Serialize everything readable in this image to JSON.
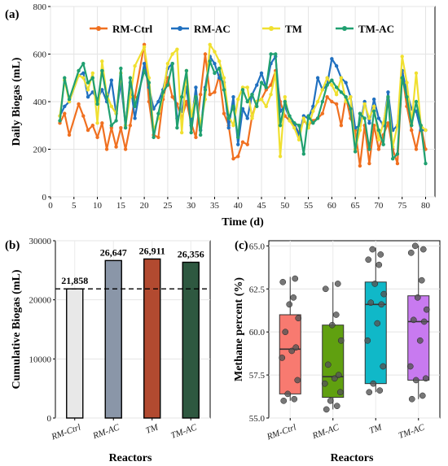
{
  "panels": {
    "a": {
      "label": "(a)"
    },
    "b": {
      "label": "(b)"
    },
    "c": {
      "label": "(c)"
    }
  },
  "colors": {
    "RM-Ctrl": "#f07020",
    "RM-AC": "#2070c0",
    "TM": "#f0e030",
    "TM-AC": "#20a070"
  },
  "chart_data": [
    {
      "id": "a",
      "type": "line",
      "xlabel": "Time (d)",
      "ylabel": "Daily Biogas (mL)",
      "xlim": [
        0,
        82
      ],
      "ylim": [
        0,
        800
      ],
      "xticks": [
        0,
        5,
        10,
        15,
        20,
        25,
        30,
        35,
        40,
        45,
        50,
        55,
        60,
        65,
        70,
        75,
        80
      ],
      "yticks": [
        0,
        200,
        400,
        600,
        800
      ],
      "legend_position": "top",
      "x": [
        2,
        3,
        4,
        6,
        7,
        8,
        9,
        10,
        11,
        12,
        13,
        14,
        15,
        16,
        17,
        18,
        20,
        21,
        22,
        23,
        24,
        25,
        26,
        27,
        28,
        29,
        30,
        31,
        32,
        33,
        34,
        35,
        36,
        37,
        38,
        39,
        40,
        41,
        42,
        43,
        44,
        45,
        46,
        47,
        48,
        49,
        50,
        51,
        52,
        53,
        54,
        55,
        56,
        57,
        58,
        59,
        60,
        61,
        62,
        63,
        64,
        65,
        66,
        67,
        68,
        69,
        70,
        71,
        72,
        73,
        74,
        75,
        76,
        77,
        78,
        79,
        80
      ],
      "series": [
        {
          "name": "RM-Ctrl",
          "values": [
            310,
            350,
            260,
            390,
            340,
            280,
            300,
            250,
            310,
            200,
            290,
            210,
            290,
            200,
            300,
            420,
            640,
            400,
            260,
            250,
            410,
            500,
            420,
            390,
            330,
            400,
            310,
            250,
            430,
            600,
            430,
            440,
            510,
            350,
            300,
            160,
            170,
            230,
            220,
            340,
            400,
            410,
            450,
            470,
            530,
            400,
            340,
            320,
            300,
            270,
            320,
            300,
            320,
            330,
            350,
            420,
            400,
            390,
            300,
            420,
            330,
            280,
            130,
            300,
            140,
            300,
            200,
            260,
            310,
            200,
            140,
            520,
            380,
            280,
            200,
            300,
            200
          ]
        },
        {
          "name": "RM-AC",
          "values": [
            340,
            380,
            400,
            510,
            520,
            420,
            440,
            410,
            450,
            400,
            490,
            350,
            480,
            300,
            480,
            330,
            560,
            460,
            370,
            400,
            450,
            540,
            560,
            330,
            360,
            460,
            300,
            460,
            280,
            460,
            590,
            560,
            500,
            480,
            290,
            420,
            220,
            370,
            330,
            430,
            470,
            520,
            460,
            560,
            590,
            360,
            380,
            330,
            310,
            260,
            340,
            330,
            380,
            500,
            450,
            470,
            580,
            550,
            500,
            480,
            420,
            290,
            300,
            400,
            310,
            410,
            330,
            300,
            440,
            280,
            300,
            530,
            440,
            370,
            360,
            280,
            280
          ]
        },
        {
          "name": "TM",
          "values": [
            340,
            490,
            400,
            510,
            500,
            450,
            520,
            310,
            570,
            430,
            380,
            350,
            520,
            300,
            420,
            550,
            630,
            500,
            280,
            330,
            430,
            560,
            600,
            620,
            270,
            530,
            340,
            420,
            300,
            410,
            640,
            610,
            570,
            500,
            340,
            300,
            410,
            460,
            460,
            330,
            400,
            410,
            380,
            430,
            520,
            170,
            420,
            320,
            290,
            240,
            330,
            290,
            360,
            400,
            450,
            500,
            470,
            430,
            500,
            400,
            420,
            200,
            280,
            390,
            330,
            380,
            240,
            310,
            420,
            210,
            300,
            590,
            480,
            310,
            520,
            300,
            280
          ]
        },
        {
          "name": "TM-AC",
          "values": [
            320,
            500,
            410,
            530,
            560,
            480,
            500,
            390,
            530,
            420,
            300,
            320,
            540,
            290,
            500,
            380,
            530,
            480,
            250,
            350,
            440,
            470,
            560,
            290,
            420,
            530,
            270,
            420,
            260,
            450,
            570,
            520,
            540,
            450,
            330,
            380,
            250,
            450,
            400,
            430,
            380,
            480,
            460,
            600,
            600,
            300,
            400,
            340,
            310,
            300,
            180,
            340,
            310,
            330,
            400,
            470,
            490,
            460,
            440,
            420,
            370,
            190,
            350,
            330,
            200,
            360,
            280,
            220,
            420,
            160,
            180,
            500,
            420,
            300,
            400,
            300,
            140
          ]
        }
      ]
    },
    {
      "id": "b",
      "type": "bar",
      "xlabel": "Reactors",
      "ylabel": "Cumulative Biogas (mL)",
      "categories": [
        "RM-Ctrl",
        "RM-AC",
        "TM",
        "TM-AC"
      ],
      "values": [
        21858,
        26647,
        26911,
        26356
      ],
      "value_labels": [
        "21,858",
        "26,647",
        "26,911",
        "26,356"
      ],
      "bar_colors": [
        "#e8e8e8",
        "#8a96a8",
        "#b24a30",
        "#2e5840"
      ],
      "ylim": [
        0,
        30000
      ],
      "yticks": [
        0,
        10000,
        20000,
        30000
      ],
      "ytick_labels": [
        "0",
        "10000",
        "20000",
        "30000"
      ],
      "reference_line": 21858
    },
    {
      "id": "c",
      "type": "box",
      "xlabel": "Reactors",
      "ylabel": "Methane percent (%)",
      "categories": [
        "RM-Ctrl",
        "RM-AC",
        "TM",
        "TM-AC"
      ],
      "box_colors": [
        "#f87a70",
        "#60a010",
        "#10b8c8",
        "#c87af0"
      ],
      "ylim": [
        55.0,
        65.3
      ],
      "yticks": [
        55.0,
        57.5,
        60.0,
        62.5,
        65.0
      ],
      "ytick_labels": [
        "55.0",
        "57.5",
        "60.0",
        "62.5",
        "65.0"
      ],
      "boxes": [
        {
          "min": 56.0,
          "q1": 56.4,
          "median": 59.0,
          "q3": 61.0,
          "max": 63.2
        },
        {
          "min": 55.5,
          "q1": 56.2,
          "median": 57.4,
          "q3": 60.4,
          "max": 62.9
        },
        {
          "min": 56.5,
          "q1": 57.0,
          "median": 61.6,
          "q3": 62.9,
          "max": 64.9
        },
        {
          "min": 56.1,
          "q1": 57.2,
          "median": 60.6,
          "q3": 62.1,
          "max": 65.0
        }
      ],
      "points": [
        [
          56.0,
          56.1,
          56.4,
          57.2,
          58.5,
          58.9,
          59.1,
          60.0,
          60.8,
          61.6,
          62.0,
          62.9,
          63.1
        ],
        [
          55.5,
          55.7,
          56.0,
          56.5,
          57.0,
          57.3,
          57.5,
          58.1,
          59.5,
          60.4,
          61.0,
          62.5,
          62.8
        ],
        [
          56.5,
          56.6,
          57.0,
          58.0,
          59.5,
          60.5,
          61.6,
          61.7,
          62.2,
          62.8,
          63.9,
          64.2,
          64.5,
          64.8
        ],
        [
          56.1,
          56.3,
          57.2,
          57.3,
          58.0,
          59.5,
          60.6,
          60.7,
          61.3,
          62.0,
          63.0,
          64.6,
          64.8,
          65.0
        ]
      ]
    }
  ]
}
